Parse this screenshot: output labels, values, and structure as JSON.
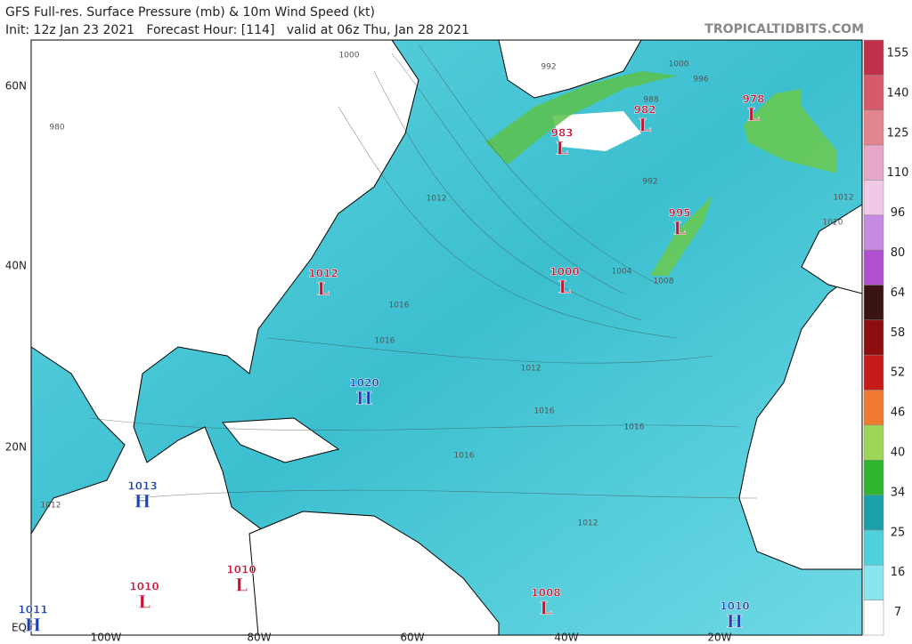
{
  "header": {
    "title": "GFS Full-res. Surface Pressure (mb) & 10m Wind Speed (kt)",
    "subtitle": "Init: 12z Jan 23 2021   Forecast Hour: [114]   valid at 06z Thu, Jan 28 2021",
    "brand": "TROPICALTIDBITS.COM"
  },
  "map": {
    "lat_labels": [
      "60N",
      "40N",
      "20N",
      "EQ"
    ],
    "lon_labels": [
      "100W",
      "80W",
      "60W",
      "40W",
      "20W"
    ],
    "centers": [
      {
        "value": "983",
        "letter": "L"
      },
      {
        "value": "982",
        "letter": "L"
      },
      {
        "value": "978",
        "letter": "L"
      },
      {
        "value": "995",
        "letter": "L"
      },
      {
        "value": "1012",
        "letter": "L"
      },
      {
        "value": "1000",
        "letter": "L"
      },
      {
        "value": "1020",
        "letter": "H"
      },
      {
        "value": "1013",
        "letter": "H"
      },
      {
        "value": "1010",
        "letter": "L"
      },
      {
        "value": "1010",
        "letter": "L"
      },
      {
        "value": "1008",
        "letter": "L"
      },
      {
        "value": "1011",
        "letter": "H"
      },
      {
        "value": "1010",
        "letter": "H"
      }
    ],
    "isobar_labels": [
      "1000",
      "992",
      "988",
      "996",
      "1000",
      "980",
      "992",
      "1012",
      "1016",
      "1016",
      "1012",
      "1016",
      "1016",
      "1016",
      "1012",
      "1012",
      "1004",
      "1008",
      "1020",
      "1012"
    ]
  },
  "colorbar": {
    "labels": [
      "155",
      "140",
      "125",
      "110",
      "96",
      "80",
      "64",
      "58",
      "52",
      "46",
      "40",
      "34",
      "25",
      "16",
      "7"
    ]
  }
}
